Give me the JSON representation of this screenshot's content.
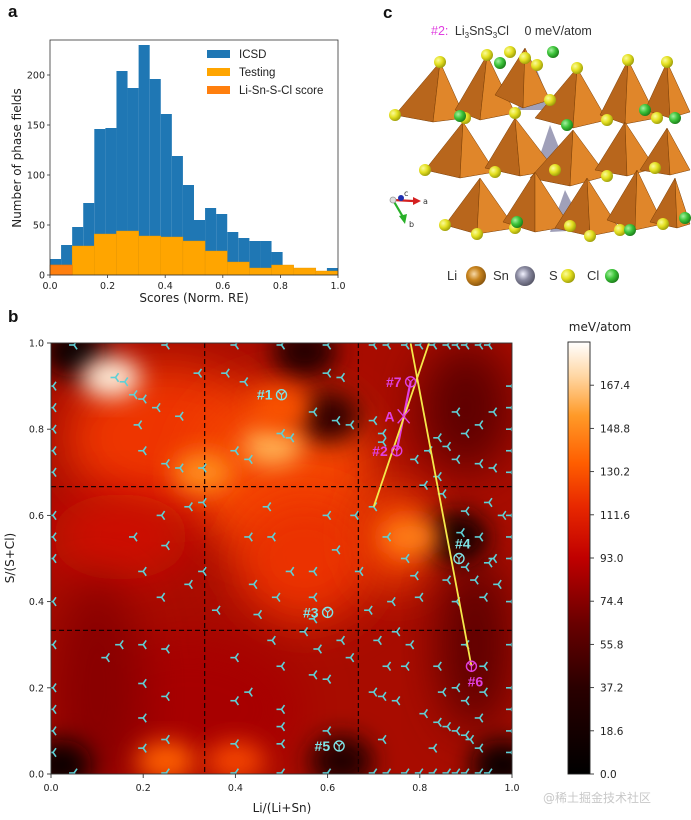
{
  "figure": {
    "panel_a_letter": "a",
    "panel_b_letter": "b",
    "panel_c_letter": "c",
    "watermark": "@稀土掘金技术社区"
  },
  "chart_data": [
    {
      "panel": "a",
      "type": "bar",
      "subtype": "histogram",
      "title": "",
      "xlabel": "Scores (Norm. RE)",
      "ylabel": "Number of phase fields",
      "xlim": [
        0.0,
        1.0
      ],
      "ylim": [
        0,
        235
      ],
      "xticks": [
        "0.0",
        "0.2",
        "0.4",
        "0.6",
        "0.8",
        "1.0"
      ],
      "xtick_values": [
        0.0,
        0.2,
        0.4,
        0.6,
        0.8,
        1.0
      ],
      "yticks": [
        "0",
        "50",
        "100",
        "150",
        "200"
      ],
      "ytick_values": [
        0,
        50,
        100,
        150,
        200
      ],
      "legend_position": "top-right",
      "series": [
        {
          "name": "ICSD",
          "color": "#1f77b4",
          "bin_edges_start": 0.0,
          "bin_width": 0.03846,
          "values": [
            16,
            30,
            48,
            72,
            146,
            147,
            204,
            187,
            230,
            196,
            161,
            119,
            90,
            55,
            67,
            61,
            43,
            37,
            34,
            34,
            23,
            0,
            0,
            0,
            0,
            7
          ]
        },
        {
          "name": "Testing",
          "color": "#ffa500",
          "bin_edges_start": 0.0,
          "bin_width": 0.07692,
          "values": [
            10,
            29,
            41,
            44,
            39,
            38,
            34,
            24,
            13,
            7,
            10,
            7,
            4
          ]
        },
        {
          "name": "Li-Sn-S-Cl score",
          "color": "#ff7f0e",
          "bin_edges_start": 0.0,
          "bin_width": 0.07692,
          "values": [
            10
          ]
        }
      ]
    },
    {
      "panel": "b",
      "type": "heatmap",
      "title": "",
      "xlabel": "Li/(Li+Sn)",
      "ylabel": "S/(S+Cl)",
      "xlim": [
        0.0,
        1.0
      ],
      "ylim": [
        0.0,
        1.0
      ],
      "xticks": [
        "0.0",
        "0.2",
        "0.4",
        "0.6",
        "0.8",
        "1.0"
      ],
      "xtick_values": [
        0.0,
        0.2,
        0.4,
        0.6,
        0.8,
        1.0
      ],
      "yticks": [
        "0.0",
        "0.2",
        "0.4",
        "0.6",
        "0.8",
        "1.0"
      ],
      "ytick_values": [
        0.0,
        0.2,
        0.4,
        0.6,
        0.8,
        1.0
      ],
      "colormap": "gist_heat",
      "colorbar": {
        "label": "meV/atom",
        "range": [
          0.0,
          186.0
        ],
        "ticks": [
          "0.0",
          "18.6",
          "37.2",
          "55.8",
          "74.4",
          "93.0",
          "111.6",
          "130.2",
          "148.8",
          "167.4"
        ],
        "tick_values": [
          0.0,
          18.6,
          37.2,
          55.8,
          74.4,
          93.0,
          111.6,
          130.2,
          148.8,
          167.4
        ]
      },
      "dashed_gridlines": {
        "x": [
          0.3333,
          0.6667
        ],
        "y": [
          0.3333,
          0.6667
        ]
      },
      "hot_regions": [
        {
          "x": 0.13,
          "y": 0.92,
          "value": 180
        },
        {
          "x": 0.48,
          "y": 0.76,
          "value": 160
        },
        {
          "x": 0.33,
          "y": 0.7,
          "value": 150
        },
        {
          "x": 0.78,
          "y": 0.55,
          "value": 145
        },
        {
          "x": 0.5,
          "y": 0.85,
          "value": 130
        },
        {
          "x": 0.25,
          "y": 0.03,
          "value": 135
        },
        {
          "x": 0.4,
          "y": 0.03,
          "value": 125
        }
      ],
      "cold_regions": [
        {
          "x": 0.05,
          "y": 0.98,
          "value": 10
        },
        {
          "x": 0.88,
          "y": 0.55,
          "value": 20
        },
        {
          "x": 0.98,
          "y": 0.02,
          "value": 10
        },
        {
          "x": 0.02,
          "y": 0.02,
          "value": 15
        },
        {
          "x": 0.63,
          "y": 0.03,
          "value": 30
        },
        {
          "x": 0.55,
          "y": 0.98,
          "value": 35
        },
        {
          "x": 0.6,
          "y": 0.83,
          "value": 40
        }
      ],
      "sample_points_marker": "tri_left",
      "sample_points_color": "#5fd0d6",
      "sample_points": [
        [
          0.14,
          0.92
        ],
        [
          0.16,
          0.91
        ],
        [
          0.18,
          0.88
        ],
        [
          0.2,
          0.87
        ],
        [
          0.23,
          0.85
        ],
        [
          0.28,
          0.83
        ],
        [
          0.19,
          0.81
        ],
        [
          0.2,
          0.75
        ],
        [
          0.25,
          0.72
        ],
        [
          0.28,
          0.71
        ],
        [
          0.33,
          0.71
        ],
        [
          0.32,
          0.93
        ],
        [
          0.38,
          0.93
        ],
        [
          0.42,
          0.91
        ],
        [
          0.4,
          0.75
        ],
        [
          0.43,
          0.73
        ],
        [
          0.5,
          0.79
        ],
        [
          0.52,
          0.78
        ],
        [
          0.6,
          0.93
        ],
        [
          0.63,
          0.92
        ],
        [
          0.57,
          0.84
        ],
        [
          0.62,
          0.82
        ],
        [
          0.65,
          0.81
        ],
        [
          0.24,
          0.6
        ],
        [
          0.3,
          0.62
        ],
        [
          0.18,
          0.55
        ],
        [
          0.25,
          0.53
        ],
        [
          0.2,
          0.47
        ],
        [
          0.3,
          0.44
        ],
        [
          0.24,
          0.41
        ],
        [
          0.36,
          0.38
        ],
        [
          0.33,
          0.47
        ],
        [
          0.47,
          0.62
        ],
        [
          0.43,
          0.55
        ],
        [
          0.48,
          0.55
        ],
        [
          0.52,
          0.47
        ],
        [
          0.57,
          0.47
        ],
        [
          0.49,
          0.41
        ],
        [
          0.44,
          0.44
        ],
        [
          0.45,
          0.37
        ],
        [
          0.57,
          0.41
        ],
        [
          0.57,
          0.36
        ],
        [
          0.33,
          0.63
        ],
        [
          0.6,
          0.6
        ],
        [
          0.66,
          0.6
        ],
        [
          0.62,
          0.52
        ],
        [
          0.67,
          0.47
        ],
        [
          0.7,
          0.62
        ],
        [
          0.73,
          0.55
        ],
        [
          0.77,
          0.5
        ],
        [
          0.79,
          0.46
        ],
        [
          0.8,
          0.41
        ],
        [
          0.74,
          0.4
        ],
        [
          0.69,
          0.38
        ],
        [
          0.7,
          0.82
        ],
        [
          0.72,
          0.79
        ],
        [
          0.72,
          0.77
        ],
        [
          0.79,
          0.73
        ],
        [
          0.81,
          0.67
        ],
        [
          0.84,
          0.69
        ],
        [
          0.84,
          0.78
        ],
        [
          0.88,
          0.84
        ],
        [
          0.9,
          0.79
        ],
        [
          0.93,
          0.81
        ],
        [
          0.96,
          0.84
        ],
        [
          0.88,
          0.73
        ],
        [
          0.93,
          0.72
        ],
        [
          0.96,
          0.71
        ],
        [
          0.85,
          0.65
        ],
        [
          0.9,
          0.61
        ],
        [
          0.95,
          0.63
        ],
        [
          0.98,
          0.6
        ],
        [
          0.82,
          0.75
        ],
        [
          0.86,
          0.76
        ],
        [
          0.89,
          0.56
        ],
        [
          0.93,
          0.55
        ],
        [
          0.95,
          0.49
        ],
        [
          0.96,
          0.5
        ],
        [
          0.9,
          0.48
        ],
        [
          0.86,
          0.45
        ],
        [
          0.92,
          0.45
        ],
        [
          0.88,
          0.4
        ],
        [
          0.94,
          0.41
        ],
        [
          0.97,
          0.44
        ],
        [
          0.12,
          0.27
        ],
        [
          0.15,
          0.3
        ],
        [
          0.2,
          0.3
        ],
        [
          0.25,
          0.29
        ],
        [
          0.2,
          0.21
        ],
        [
          0.25,
          0.18
        ],
        [
          0.2,
          0.13
        ],
        [
          0.25,
          0.08
        ],
        [
          0.2,
          0.06
        ],
        [
          0.4,
          0.27
        ],
        [
          0.43,
          0.19
        ],
        [
          0.4,
          0.17
        ],
        [
          0.5,
          0.25
        ],
        [
          0.5,
          0.15
        ],
        [
          0.5,
          0.11
        ],
        [
          0.5,
          0.07
        ],
        [
          0.4,
          0.07
        ],
        [
          0.57,
          0.23
        ],
        [
          0.6,
          0.22
        ],
        [
          0.6,
          0.1
        ],
        [
          0.48,
          0.31
        ],
        [
          0.55,
          0.33
        ],
        [
          0.58,
          0.29
        ],
        [
          0.63,
          0.31
        ],
        [
          0.65,
          0.27
        ],
        [
          0.71,
          0.31
        ],
        [
          0.75,
          0.33
        ],
        [
          0.78,
          0.3
        ],
        [
          0.7,
          0.19
        ],
        [
          0.72,
          0.18
        ],
        [
          0.75,
          0.17
        ],
        [
          0.72,
          0.08
        ],
        [
          0.73,
          0.25
        ],
        [
          0.77,
          0.25
        ],
        [
          0.84,
          0.25
        ],
        [
          0.9,
          0.3
        ],
        [
          0.94,
          0.25
        ],
        [
          0.85,
          0.19
        ],
        [
          0.88,
          0.2
        ],
        [
          0.9,
          0.17
        ],
        [
          0.94,
          0.19
        ],
        [
          0.81,
          0.14
        ],
        [
          0.84,
          0.12
        ],
        [
          0.86,
          0.11
        ],
        [
          0.88,
          0.1
        ],
        [
          0.9,
          0.09
        ],
        [
          0.91,
          0.08
        ],
        [
          0.93,
          0.13
        ],
        [
          0.93,
          0.06
        ],
        [
          0.83,
          0.06
        ]
      ],
      "labeled_points": [
        {
          "label": "#1",
          "x": 0.5,
          "y": 0.88,
          "color": "#7fe3e6",
          "marker": "circled-cross",
          "label_side": "left"
        },
        {
          "label": "#2",
          "x": 0.75,
          "y": 0.75,
          "color": "#e040e0",
          "marker": "circled-cross",
          "label_side": "left"
        },
        {
          "label": "#3",
          "x": 0.6,
          "y": 0.375,
          "color": "#7fe3e6",
          "marker": "circled-cross",
          "label_side": "left"
        },
        {
          "label": "#4",
          "x": 0.885,
          "y": 0.5,
          "color": "#7fe3e6",
          "marker": "circled-cross",
          "label_side": "above-right"
        },
        {
          "label": "#5",
          "x": 0.625,
          "y": 0.065,
          "color": "#7fe3e6",
          "marker": "circled-cross",
          "label_side": "left"
        },
        {
          "label": "#6",
          "x": 0.912,
          "y": 0.25,
          "color": "#e040e0",
          "marker": "circled-cross",
          "label_side": "below"
        },
        {
          "label": "#7",
          "x": 0.78,
          "y": 0.91,
          "color": "#e040e0",
          "marker": "circled-cross",
          "label_side": "left"
        },
        {
          "label": "A",
          "x": 0.765,
          "y": 0.83,
          "color": "#e040e0",
          "marker": "x",
          "label_side": "left"
        }
      ],
      "lines": [
        {
          "name": "tie-line-2-7",
          "color": "#e040e0",
          "points": [
            [
              0.75,
              0.75
            ],
            [
              0.78,
              0.91
            ]
          ]
        },
        {
          "name": "yellow-line-1",
          "color": "#f5e84a",
          "points": [
            [
              0.78,
              1.0
            ],
            [
              0.912,
              0.25
            ]
          ]
        },
        {
          "name": "yellow-line-2",
          "color": "#f5e84a",
          "points": [
            [
              0.82,
              1.0
            ],
            [
              0.7,
              0.62
            ]
          ]
        }
      ]
    }
  ],
  "crystal": {
    "title_prefix": "#2:",
    "formula_parts": [
      "Li",
      "3",
      "SnS",
      "3",
      "Cl"
    ],
    "energy": "0 meV/atom",
    "axes": {
      "a": "a",
      "b": "b",
      "c": "c"
    },
    "legend": [
      {
        "label": "Li",
        "color": "#c8841e"
      },
      {
        "label": "Sn",
        "color": "#8a8aa0"
      },
      {
        "label": "S",
        "color": "#e4e021"
      },
      {
        "label": "Cl",
        "color": "#3dc43a"
      }
    ],
    "colors": {
      "li_polyhedron": "#e0862a",
      "li_polyhedron_dark": "#b8661c",
      "sn_polyhedron": "#9b9bb5",
      "s_atom": "#e4e021",
      "cl_atom": "#3dc43a"
    }
  }
}
